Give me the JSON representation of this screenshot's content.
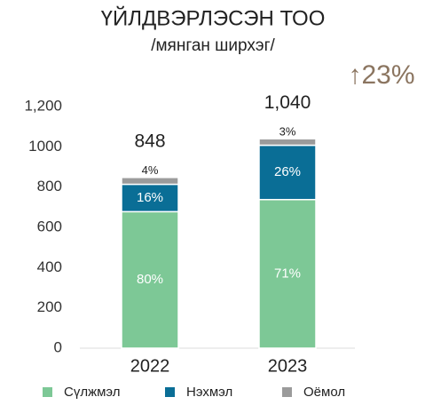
{
  "chart_data": {
    "type": "stacked_bar",
    "title": "ҮЙЛДВЭРЛЭСЭН ТОО",
    "subtitle": "/мянган ширхэг/",
    "annotation": "↑23%",
    "categories": [
      "2022",
      "2023"
    ],
    "total_labels": [
      "848",
      "1,040"
    ],
    "series": [
      {
        "name": "Сүлжмэл",
        "color": "#7dc896",
        "values": [
          678,
          738
        ],
        "share_labels": [
          "80%",
          "71%"
        ]
      },
      {
        "name": "Нэхмэл",
        "color": "#0a6e96",
        "values": [
          136,
          270
        ],
        "share_labels": [
          "16%",
          "26%"
        ]
      },
      {
        "name": "Оёмол",
        "color": "#9b9b9b",
        "values": [
          34,
          32
        ],
        "share_labels": [
          "4%",
          "3%"
        ]
      }
    ],
    "ylim": [
      0,
      1200
    ],
    "yticks": [
      0,
      200,
      400,
      600,
      800,
      1000,
      {
        "value": 1200,
        "label": "1,200"
      }
    ],
    "grid": false
  }
}
